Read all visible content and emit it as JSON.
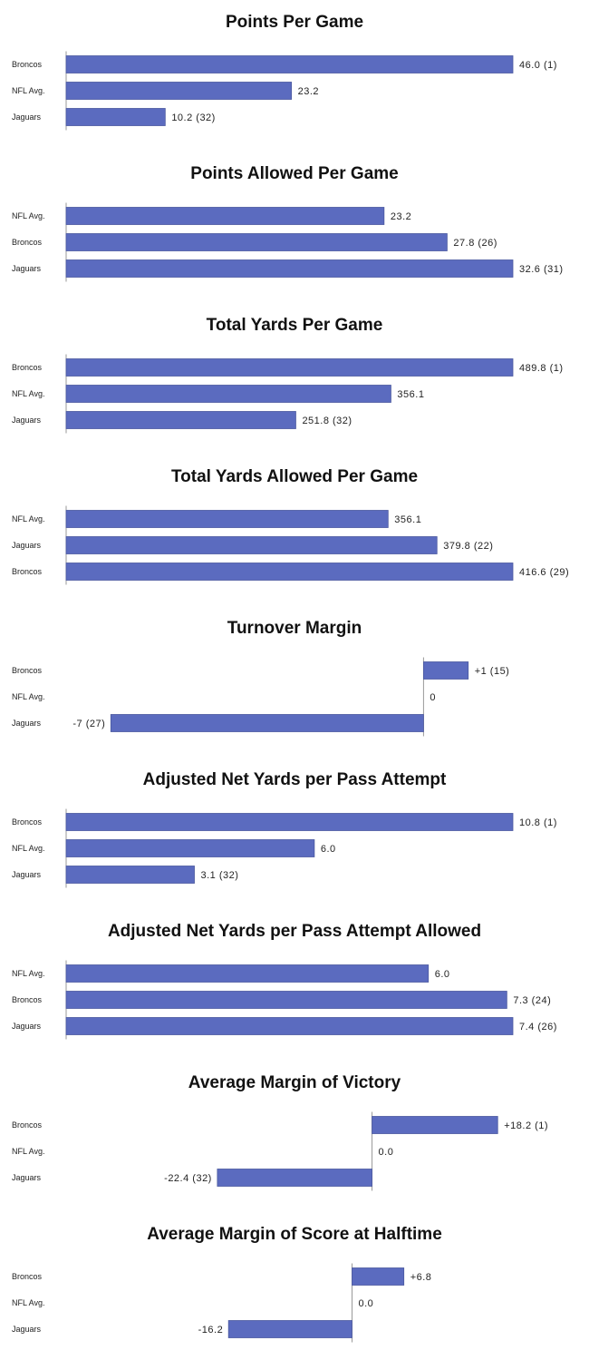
{
  "colors": {
    "bar": "#5b6bbf",
    "bar_stroke": "#4a589f",
    "axis": "#999999"
  },
  "chart_data": [
    {
      "type": "bar",
      "orientation": "horizontal",
      "title": "Points Per Game",
      "categories": [
        "Broncos",
        "NFL Avg.",
        "Jaguars"
      ],
      "values": [
        46.0,
        23.2,
        10.2
      ],
      "value_labels": [
        "46.0 (1)",
        "23.2",
        "10.2 (32)"
      ],
      "xlim": [
        0,
        46
      ]
    },
    {
      "type": "bar",
      "orientation": "horizontal",
      "title": "Points Allowed Per Game",
      "categories": [
        "NFL Avg.",
        "Broncos",
        "Jaguars"
      ],
      "values": [
        23.2,
        27.8,
        32.6
      ],
      "value_labels": [
        "23.2",
        "27.8 (26)",
        "32.6 (31)"
      ],
      "xlim": [
        0,
        32.6
      ]
    },
    {
      "type": "bar",
      "orientation": "horizontal",
      "title": "Total Yards Per Game",
      "categories": [
        "Broncos",
        "NFL Avg.",
        "Jaguars"
      ],
      "values": [
        489.8,
        356.1,
        251.8
      ],
      "value_labels": [
        "489.8 (1)",
        "356.1",
        "251.8 (32)"
      ],
      "xlim": [
        0,
        489.8
      ]
    },
    {
      "type": "bar",
      "orientation": "horizontal",
      "title": "Total Yards Allowed Per Game",
      "categories": [
        "NFL Avg.",
        "Jaguars",
        "Broncos"
      ],
      "values": [
        356.1,
        379.8,
        416.6
      ],
      "value_labels": [
        "356.1",
        "379.8 (22)",
        "416.6 (29)"
      ],
      "xlim": [
        200,
        416.6
      ]
    },
    {
      "type": "bar",
      "orientation": "horizontal",
      "title": "Turnover Margin",
      "categories": [
        "Broncos",
        "NFL Avg.",
        "Jaguars"
      ],
      "values": [
        1,
        0,
        -7
      ],
      "value_labels": [
        "+1 (15)",
        "0",
        "-7 (27)"
      ],
      "xlim": [
        -8,
        2
      ]
    },
    {
      "type": "bar",
      "orientation": "horizontal",
      "title": "Adjusted Net Yards per Pass Attempt",
      "categories": [
        "Broncos",
        "NFL Avg.",
        "Jaguars"
      ],
      "values": [
        10.8,
        6.0,
        3.1
      ],
      "value_labels": [
        "10.8 (1)",
        "6.0",
        "3.1 (32)"
      ],
      "xlim": [
        0,
        10.8
      ]
    },
    {
      "type": "bar",
      "orientation": "horizontal",
      "title": "Adjusted Net Yards per Pass Attempt Allowed",
      "categories": [
        "NFL Avg.",
        "Broncos",
        "Jaguars"
      ],
      "values": [
        6.0,
        7.3,
        7.4
      ],
      "value_labels": [
        "6.0",
        "7.3 (24)",
        "7.4 (26)"
      ],
      "xlim": [
        0,
        7.4
      ]
    },
    {
      "type": "bar",
      "orientation": "horizontal",
      "title": "Average Margin of Victory",
      "categories": [
        "Broncos",
        "NFL Avg.",
        "Jaguars"
      ],
      "values": [
        18.2,
        0.0,
        -22.4
      ],
      "value_labels": [
        "+18.2 (1)",
        "0.0",
        "-22.4 (32)"
      ],
      "xlim": [
        -44.3,
        20.4
      ]
    },
    {
      "type": "bar",
      "orientation": "horizontal",
      "title": "Average Margin of Score at Halftime",
      "categories": [
        "Broncos",
        "NFL Avg.",
        "Jaguars"
      ],
      "values": [
        6.8,
        0.0,
        -16.2
      ],
      "value_labels": [
        "+6.8",
        "0.0",
        "-16.2"
      ],
      "xlim": [
        -37.5,
        21.1
      ]
    }
  ]
}
